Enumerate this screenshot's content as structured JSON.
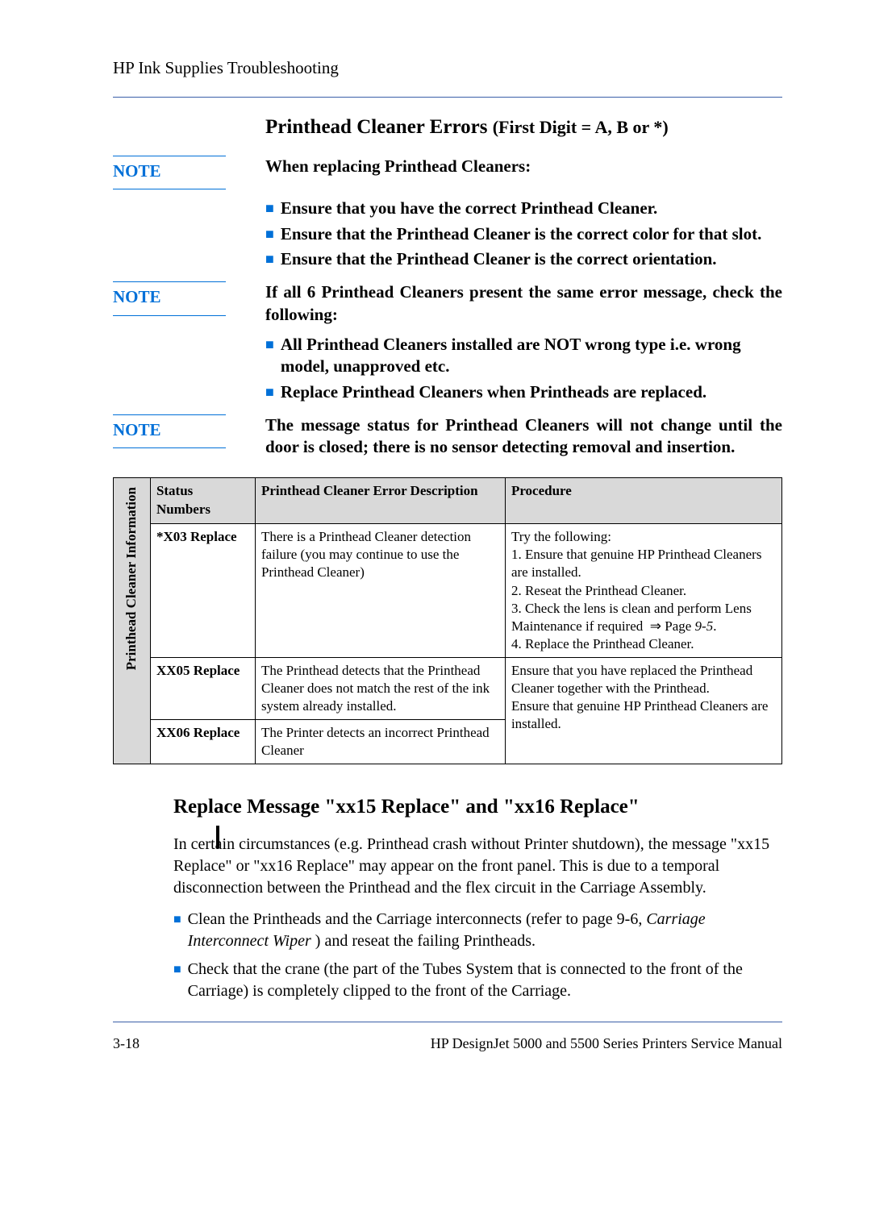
{
  "header": {
    "text": "HP Ink Supplies Troubleshooting"
  },
  "section1": {
    "title_main": "Printhead Cleaner Errors ",
    "title_paren": "(First Digit = A, B or *)"
  },
  "note1": {
    "label": "NOTE",
    "content": "When replacing Printhead Cleaners:"
  },
  "bullets1": [
    "Ensure that you have the correct Printhead Cleaner.",
    "Ensure that the Printhead Cleaner is the correct color for that slot.",
    "Ensure that the Printhead Cleaner is the correct orientation."
  ],
  "note2": {
    "label": "NOTE",
    "content": "If all 6 Printhead Cleaners present the same error message, check the following:"
  },
  "bullets2": [
    "All Printhead Cleaners installed are  NOT wrong type i.e. wrong model, unapproved etc.",
    "Replace Printhead Cleaners when Printheads are replaced."
  ],
  "note3": {
    "label": "NOTE",
    "content": "The message status for Printhead Cleaners will not change until the door is closed; there is no sensor detecting removal and insertion."
  },
  "table": {
    "side_header": "Printhead Cleaner Information",
    "headers": [
      "Status Numbers",
      "Printhead Cleaner Error Description",
      "Procedure"
    ],
    "rows": [
      {
        "status": "*X03 Replace",
        "desc": "There is a Printhead Cleaner detection failure (you may continue to use the Printhead Cleaner)",
        "proc": "Try the following:\n1. Ensure that genuine HP Printhead Cleaners are installed.\n2. Reseat the Printhead Cleaner.\n3. Check the lens is clean and perform Lens Maintenance if required ⇒ Page 9-5.\n4. Replace the Printhead Cleaner."
      },
      {
        "status": "XX05 Replace",
        "desc": "The Printhead detects that the Printhead Cleaner does not match the rest of the ink system already installed.",
        "proc": "Ensure that you have replaced the Printhead Cleaner together with the Printhead.\nEnsure that genuine HP Printhead Cleaners are installed."
      },
      {
        "status": "XX06 Replace",
        "desc": "The Printer detects an incorrect Printhead Cleaner",
        "proc": ""
      }
    ]
  },
  "section2": {
    "heading": "Replace Message \"xx15 Replace\" and \"xx16 Replace\"",
    "para": "In certain circumstances (e.g. Printhead crash without Printer shutdown), the message \"xx15 Replace\" or \"xx16 Replace\" may appear on the front panel. This is due to a temporal disconnection between the Printhead and the flex circuit in the Carriage Assembly.",
    "bullets": [
      {
        "pre": "Clean the Printheads and the Carriage interconnects (refer to page 9-6, ",
        "italic": "Carriage Interconnect Wiper",
        "post": " ) and reseat the failing Printheads."
      },
      {
        "pre": "Check that the crane (the part of the Tubes System that is connected to the front of the Carriage) is completely clipped to the front of the Carriage.",
        "italic": "",
        "post": ""
      }
    ]
  },
  "footer": {
    "left": "3-18",
    "right": "HP DesignJet 5000 and 5500 Series Printers Service Manual"
  }
}
